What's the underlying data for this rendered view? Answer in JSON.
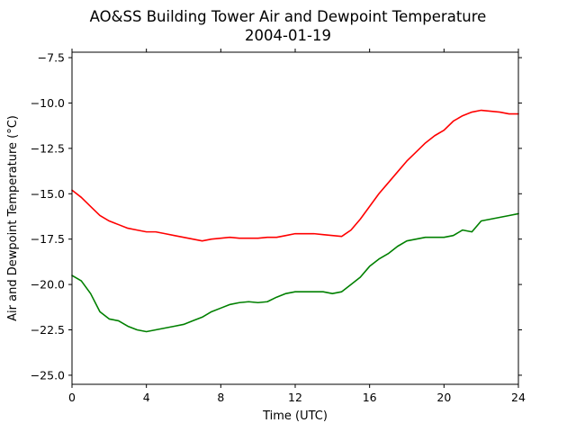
{
  "chart_data": {
    "type": "line",
    "title": "AO&SS Building Tower Air and Dewpoint Temperature",
    "subtitle": "2004-01-19",
    "xlabel": "Time (UTC)",
    "ylabel": "Air and Dewpoint Temperature (°C)",
    "xlim": [
      0,
      24
    ],
    "ylim": [
      -25.5,
      -7.2
    ],
    "x_ticks": [
      0,
      4,
      8,
      12,
      16,
      20,
      24
    ],
    "x_tick_labels": [
      "0",
      "4",
      "8",
      "12",
      "16",
      "20",
      "24"
    ],
    "y_ticks": [
      -7.5,
      -10.0,
      -12.5,
      -15.0,
      -17.5,
      -20.0,
      -22.5,
      -25.0
    ],
    "y_tick_labels": [
      "−7.5",
      "−10.0",
      "−12.5",
      "−15.0",
      "−17.5",
      "−20.0",
      "−22.5",
      "−25.0"
    ],
    "grid": false,
    "x": [
      0,
      0.5,
      1,
      1.5,
      2,
      2.5,
      3,
      3.5,
      4,
      4.5,
      5,
      5.5,
      6,
      6.5,
      7,
      7.5,
      8,
      8.5,
      9,
      9.5,
      10,
      10.5,
      11,
      11.5,
      12,
      12.5,
      13,
      13.5,
      14,
      14.5,
      15,
      15.5,
      16,
      16.5,
      17,
      17.5,
      18,
      18.5,
      19,
      19.5,
      20,
      20.5,
      21,
      21.5,
      22,
      22.5,
      23,
      23.5,
      24
    ],
    "series": [
      {
        "color": "#ff0000",
        "values": [
          -14.8,
          -15.2,
          -15.7,
          -16.2,
          -16.5,
          -16.7,
          -16.9,
          -17.0,
          -17.1,
          -17.1,
          -17.2,
          -17.3,
          -17.4,
          -17.5,
          -17.6,
          -17.5,
          -17.45,
          -17.4,
          -17.45,
          -17.45,
          -17.45,
          -17.4,
          -17.4,
          -17.3,
          -17.2,
          -17.2,
          -17.2,
          -17.25,
          -17.3,
          -17.35,
          -17.0,
          -16.4,
          -15.7,
          -15.0,
          -14.4,
          -13.8,
          -13.2,
          -12.7,
          -12.2,
          -11.8,
          -11.5,
          -11.0,
          -10.7,
          -10.5,
          -10.4,
          -10.45,
          -10.5,
          -10.6,
          -10.6
        ]
      },
      {
        "color": "#008000",
        "values": [
          -19.5,
          -19.8,
          -20.5,
          -21.5,
          -21.9,
          -22.0,
          -22.3,
          -22.5,
          -22.6,
          -22.5,
          -22.4,
          -22.3,
          -22.2,
          -22.0,
          -21.8,
          -21.5,
          -21.3,
          -21.1,
          -21.0,
          -20.95,
          -21.0,
          -20.95,
          -20.7,
          -20.5,
          -20.4,
          -20.4,
          -20.4,
          -20.4,
          -20.5,
          -20.4,
          -20.0,
          -19.6,
          -19.0,
          -18.6,
          -18.3,
          -17.9,
          -17.6,
          -17.5,
          -17.4,
          -17.4,
          -17.4,
          -17.3,
          -17.0,
          -17.1,
          -16.5,
          -16.4,
          -16.3,
          -16.2,
          -16.1
        ]
      }
    ]
  }
}
